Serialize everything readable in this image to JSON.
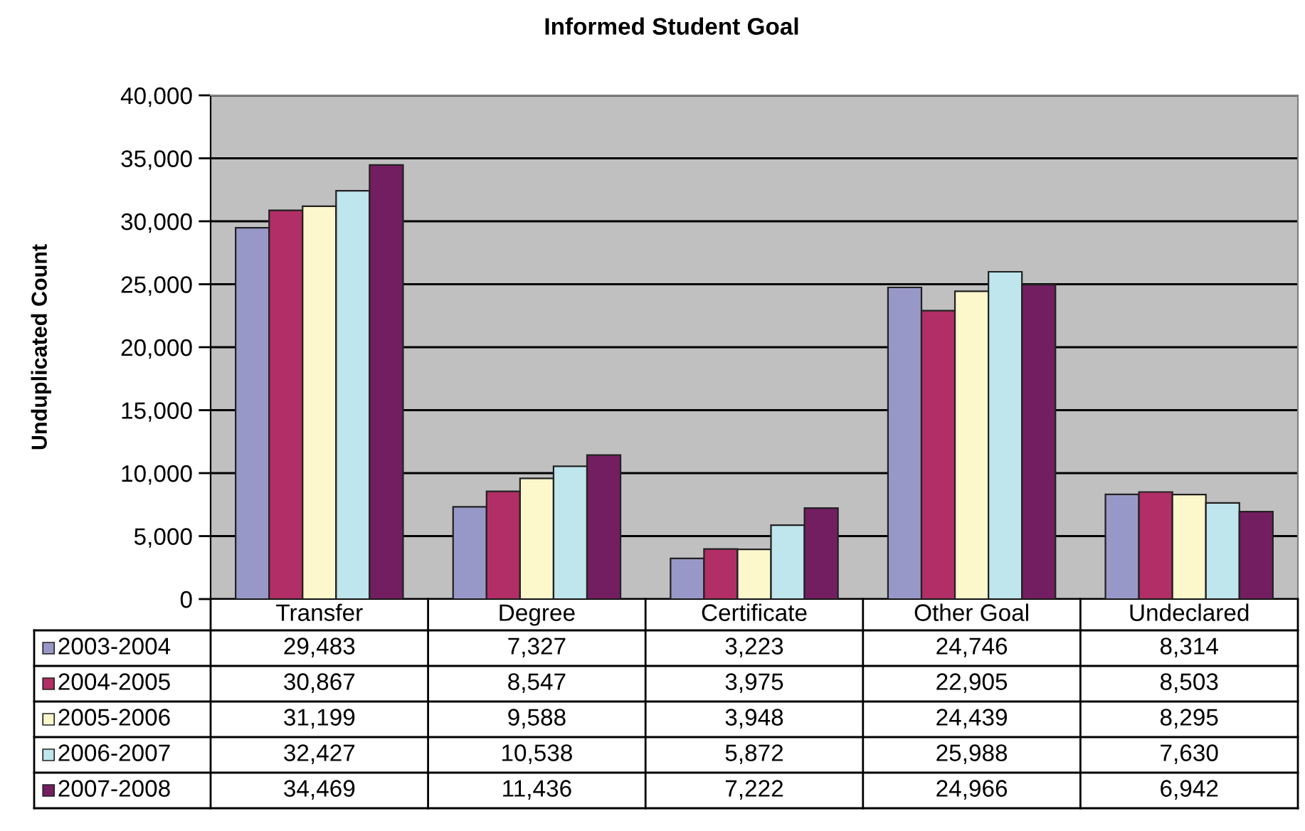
{
  "chart_data": {
    "type": "bar",
    "title": "Informed Student Goal",
    "ylabel": "Unduplicated Count",
    "categories": [
      "Transfer",
      "Degree",
      "Certificate",
      "Other Goal",
      "Undeclared"
    ],
    "series": [
      {
        "name": "2003-2004",
        "color": "#9898c8",
        "values": [
          29483,
          7327,
          3223,
          24746,
          8314
        ],
        "value_labels": [
          "29,483",
          "7,327",
          "3,223",
          "24,746",
          "8,314"
        ]
      },
      {
        "name": "2004-2005",
        "color": "#b22e66",
        "values": [
          30867,
          8547,
          3975,
          22905,
          8503
        ],
        "value_labels": [
          "30,867",
          "8,547",
          "3,975",
          "22,905",
          "8,503"
        ]
      },
      {
        "name": "2005-2006",
        "color": "#fcf8cc",
        "values": [
          31199,
          9588,
          3948,
          24439,
          8295
        ],
        "value_labels": [
          "31,199",
          "9,588",
          "3,948",
          "24,439",
          "8,295"
        ]
      },
      {
        "name": "2006-2007",
        "color": "#bfe5ed",
        "values": [
          32427,
          10538,
          5872,
          25988,
          7630
        ],
        "value_labels": [
          "32,427",
          "10,538",
          "5,872",
          "25,988",
          "7,630"
        ]
      },
      {
        "name": "2007-2008",
        "color": "#741e62",
        "values": [
          34469,
          11436,
          7222,
          24966,
          6942
        ],
        "value_labels": [
          "34,469",
          "11,436",
          "7,222",
          "24,966",
          "6,942"
        ]
      }
    ],
    "ylim": [
      0,
      40000
    ],
    "yticks": [
      0,
      {
        "value": 5000,
        "label": "5,000"
      },
      {
        "value": 10000,
        "label": "10,000"
      },
      {
        "value": 15000,
        "label": "15,000"
      },
      {
        "value": 20000,
        "label": "20,000"
      },
      {
        "value": 25000,
        "label": "25,000"
      },
      {
        "value": 30000,
        "label": "30,000"
      },
      {
        "value": 35000,
        "label": "35,000"
      },
      {
        "value": 40000,
        "label": "40,000"
      }
    ],
    "grid": "y",
    "legend": "bottom"
  }
}
